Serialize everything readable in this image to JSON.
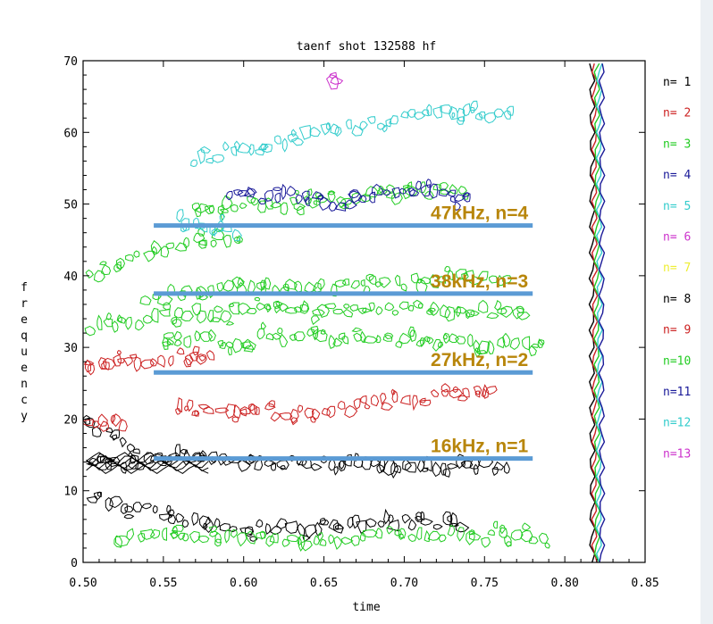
{
  "chart_data": {
    "type": "contour",
    "title": "taenf shot  132588 hf",
    "xlabel": "time",
    "ylabel": "frequency",
    "ylabel_chars": [
      "f",
      "r",
      "e",
      "q",
      "u",
      "e",
      "n",
      "c",
      "y"
    ],
    "xlim": [
      0.5,
      0.85
    ],
    "ylim": [
      0,
      70
    ],
    "xticks": [
      0.5,
      0.55,
      0.6,
      0.65,
      0.7,
      0.75,
      0.8,
      0.85
    ],
    "xtick_labels": [
      "0.50",
      "0.55",
      "0.60",
      "0.65",
      "0.70",
      "0.75",
      "0.80",
      "0.85"
    ],
    "yticks": [
      0,
      10,
      20,
      30,
      40,
      50,
      60,
      70
    ],
    "ytick_labels": [
      "0",
      "10",
      "20",
      "30",
      "40",
      "50",
      "60",
      "70"
    ],
    "grid": false,
    "legend_position": "right",
    "legend": [
      {
        "label": "n= 1",
        "color": "#000000"
      },
      {
        "label": "n= 2",
        "color": "#cc2222"
      },
      {
        "label": "n= 3",
        "color": "#22cc22"
      },
      {
        "label": "n= 4",
        "color": "#1a1a99"
      },
      {
        "label": "n= 5",
        "color": "#33cccc"
      },
      {
        "label": "n= 6",
        "color": "#cc33cc"
      },
      {
        "label": "n= 7",
        "color": "#eeee33"
      },
      {
        "label": "n= 8",
        "color": "#000000"
      },
      {
        "label": "n= 9",
        "color": "#cc2222"
      },
      {
        "label": "n=10",
        "color": "#22cc22"
      },
      {
        "label": "n=11",
        "color": "#1a1a99"
      },
      {
        "label": "n=12",
        "color": "#33cccc"
      },
      {
        "label": "n=13",
        "color": "#cc33cc"
      }
    ],
    "mode_lines": [
      {
        "label": "47kHz, n=4",
        "y": 47,
        "x0": 0.544,
        "x1": 0.78,
        "color": "#5b9bd5"
      },
      {
        "label": "38kHz, n=3",
        "y": 37.5,
        "x0": 0.544,
        "x1": 0.78,
        "color": "#5b9bd5"
      },
      {
        "label": "27kHz, n=2",
        "y": 26.5,
        "x0": 0.544,
        "x1": 0.78,
        "color": "#5b9bd5"
      },
      {
        "label": "16kHz, n=1",
        "y": 14.5,
        "x0": 0.544,
        "x1": 0.78,
        "color": "#5b9bd5"
      }
    ],
    "annotation_color": "#b8860b",
    "mode_bands": [
      {
        "mode": 1,
        "color": "#000000",
        "points": [
          [
            0.505,
            14
          ],
          [
            0.52,
            13.5
          ],
          [
            0.54,
            14.2
          ],
          [
            0.56,
            14.8
          ],
          [
            0.58,
            14.5
          ],
          [
            0.6,
            14
          ],
          [
            0.66,
            13.8
          ],
          [
            0.7,
            13.6
          ],
          [
            0.74,
            13.5
          ],
          [
            0.77,
            13.2
          ]
        ]
      },
      {
        "mode": 1,
        "color": "#000000",
        "points": [
          [
            0.505,
            19.5
          ],
          [
            0.515,
            18
          ],
          [
            0.53,
            16.5
          ],
          [
            0.54,
            15.5
          ]
        ]
      },
      {
        "mode": 1,
        "color": "#000000",
        "points": [
          [
            0.505,
            9
          ],
          [
            0.52,
            8
          ],
          [
            0.54,
            8
          ],
          [
            0.56,
            6
          ],
          [
            0.6,
            5
          ],
          [
            0.65,
            5
          ],
          [
            0.7,
            6
          ],
          [
            0.74,
            5
          ]
        ]
      },
      {
        "mode": 2,
        "color": "#cc2222",
        "points": [
          [
            0.502,
            27
          ],
          [
            0.52,
            27.5
          ],
          [
            0.54,
            28
          ],
          [
            0.55,
            28.8
          ],
          [
            0.57,
            29
          ],
          [
            0.585,
            28.5
          ]
        ]
      },
      {
        "mode": 2,
        "color": "#cc2222",
        "points": [
          [
            0.56,
            22
          ],
          [
            0.58,
            21
          ],
          [
            0.62,
            21
          ],
          [
            0.65,
            21
          ],
          [
            0.67,
            22
          ],
          [
            0.7,
            22.5
          ],
          [
            0.73,
            23
          ],
          [
            0.76,
            24
          ]
        ]
      },
      {
        "mode": 2,
        "color": "#cc2222",
        "points": [
          [
            0.502,
            20
          ],
          [
            0.515,
            19.5
          ],
          [
            0.53,
            19
          ]
        ]
      },
      {
        "mode": 3,
        "color": "#22cc22",
        "points": [
          [
            0.505,
            33
          ],
          [
            0.53,
            33.5
          ],
          [
            0.56,
            34.5
          ],
          [
            0.6,
            35
          ],
          [
            0.65,
            35
          ],
          [
            0.7,
            35.5
          ],
          [
            0.75,
            35
          ],
          [
            0.78,
            34
          ]
        ]
      },
      {
        "mode": 3,
        "color": "#22cc22",
        "points": [
          [
            0.505,
            40
          ],
          [
            0.52,
            41
          ],
          [
            0.54,
            43
          ],
          [
            0.56,
            44.5
          ],
          [
            0.58,
            45
          ],
          [
            0.6,
            45
          ]
        ]
      },
      {
        "mode": 3,
        "color": "#22cc22",
        "points": [
          [
            0.54,
            37
          ],
          [
            0.58,
            38
          ],
          [
            0.62,
            38.5
          ],
          [
            0.66,
            38.5
          ],
          [
            0.7,
            39
          ],
          [
            0.74,
            39.5
          ],
          [
            0.77,
            40
          ]
        ]
      },
      {
        "mode": 3,
        "color": "#22cc22",
        "points": [
          [
            0.55,
            31
          ],
          [
            0.6,
            31
          ],
          [
            0.65,
            31.5
          ],
          [
            0.7,
            31
          ],
          [
            0.75,
            30.5
          ],
          [
            0.79,
            30
          ]
        ]
      },
      {
        "mode": 3,
        "color": "#22cc22",
        "points": [
          [
            0.57,
            49
          ],
          [
            0.6,
            50
          ],
          [
            0.63,
            50
          ],
          [
            0.66,
            51
          ],
          [
            0.7,
            51.5
          ],
          [
            0.74,
            52
          ]
        ]
      },
      {
        "mode": 3,
        "color": "#22cc22",
        "points": [
          [
            0.52,
            3
          ],
          [
            0.56,
            4
          ],
          [
            0.6,
            3.5
          ],
          [
            0.65,
            3
          ],
          [
            0.7,
            4
          ],
          [
            0.75,
            3.5
          ],
          [
            0.79,
            3
          ]
        ]
      },
      {
        "mode": 4,
        "color": "#1a1a99",
        "points": [
          [
            0.59,
            52
          ],
          [
            0.61,
            51
          ],
          [
            0.63,
            51.5
          ],
          [
            0.66,
            50
          ],
          [
            0.68,
            51
          ],
          [
            0.7,
            52
          ],
          [
            0.72,
            52
          ],
          [
            0.745,
            51
          ]
        ]
      },
      {
        "mode": 5,
        "color": "#33cccc",
        "points": [
          [
            0.57,
            56
          ],
          [
            0.59,
            57.5
          ],
          [
            0.61,
            58
          ],
          [
            0.63,
            59
          ],
          [
            0.65,
            60
          ],
          [
            0.68,
            61
          ],
          [
            0.7,
            62
          ],
          [
            0.72,
            62.5
          ],
          [
            0.745,
            63
          ],
          [
            0.77,
            62
          ]
        ]
      },
      {
        "mode": 5,
        "color": "#33cccc",
        "points": [
          [
            0.56,
            48
          ],
          [
            0.575,
            47
          ],
          [
            0.59,
            46
          ],
          [
            0.6,
            44
          ]
        ]
      },
      {
        "mode": 6,
        "color": "#cc33cc",
        "points": [
          [
            0.655,
            66.5
          ],
          [
            0.658,
            67.5
          ]
        ]
      }
    ],
    "separatrix": {
      "x": 0.82,
      "color": "#000000"
    }
  }
}
